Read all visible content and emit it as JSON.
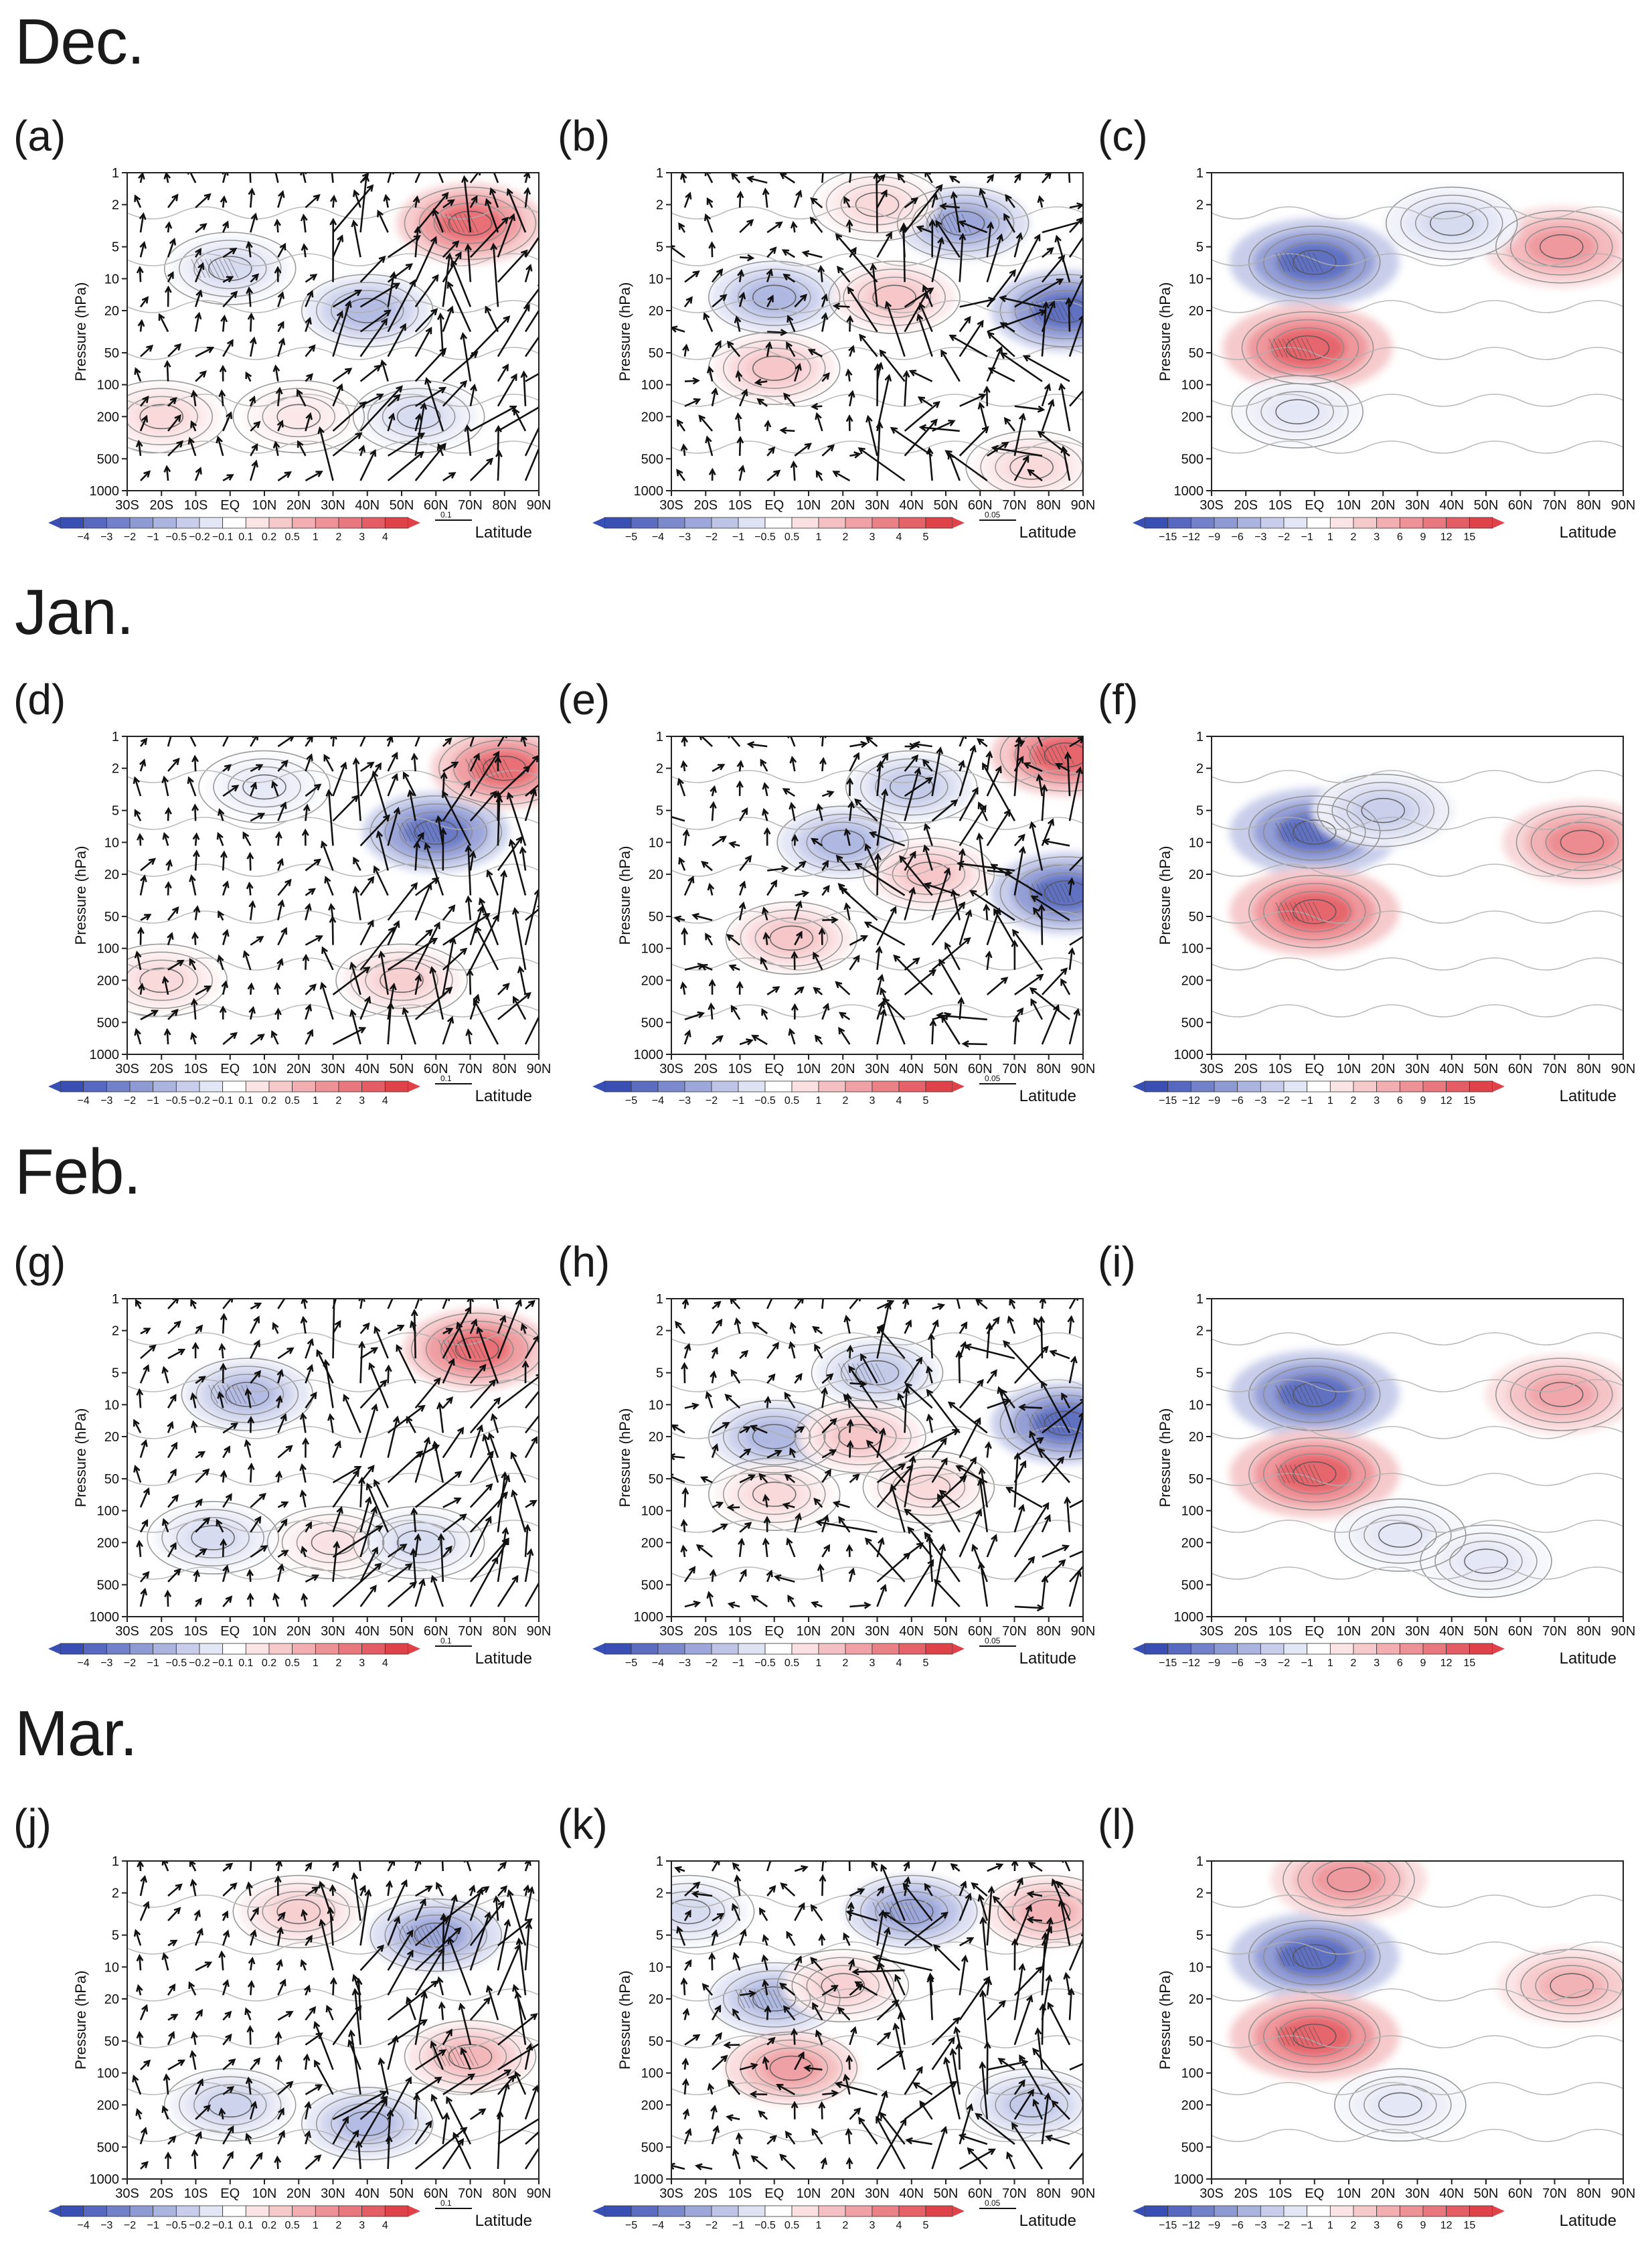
{
  "months": [
    "Dec.",
    "Jan.",
    "Feb.",
    "Mar."
  ],
  "panels": {
    "labels": [
      "(a)",
      "(b)",
      "(c)",
      "(d)",
      "(e)",
      "(f)",
      "(g)",
      "(h)",
      "(i)",
      "(j)",
      "(k)",
      "(l)"
    ],
    "ylabel": "Pressure (hPa)",
    "xlabel": "Latitude"
  },
  "axes": {
    "pressure_ticks": [
      "1",
      "2",
      "5",
      "10",
      "20",
      "50",
      "100",
      "200",
      "500",
      "1000"
    ],
    "latitude_ticks": [
      "30S",
      "20S",
      "10S",
      "EQ",
      "10N",
      "20N",
      "30N",
      "40N",
      "50N",
      "60N",
      "70N",
      "80N",
      "90N"
    ]
  },
  "colorbars": {
    "col1": [
      "−4",
      "−3",
      "−2",
      "−1",
      "−0.5",
      "−0.2",
      "−0.1",
      "0.1",
      "0.2",
      "0.5",
      "1",
      "2",
      "3",
      "4"
    ],
    "col2": [
      "−5",
      "−4",
      "−3",
      "−2",
      "−1",
      "−0.5",
      "0.5",
      "1",
      "2",
      "3",
      "4",
      "5"
    ],
    "col3": [
      "−15",
      "−12",
      "−9",
      "−6",
      "−3",
      "−2",
      "−1",
      "1",
      "2",
      "3",
      "6",
      "9",
      "12",
      "15"
    ]
  },
  "vector_refs": {
    "col1": "0.1",
    "col2": "0.05",
    "col3": ""
  },
  "colors": {
    "red": "#e0424a",
    "blue": "#3a4fb4",
    "contour": "#8a8a8a"
  },
  "chart_data": {
    "type": "heatmap",
    "description_columns": [
      "anomaly with wave-flux vectors",
      "anomaly with wave-flux vectors",
      "anomaly contours"
    ],
    "x": [
      "30S",
      "20S",
      "10S",
      "EQ",
      "10N",
      "20N",
      "30N",
      "40N",
      "50N",
      "60N",
      "70N",
      "80N",
      "90N"
    ],
    "y_pressure_hPa": [
      1,
      2,
      5,
      10,
      20,
      50,
      100,
      200,
      500,
      1000
    ],
    "ylim": [
      1000,
      1
    ],
    "xlim": [
      "30S",
      "90N"
    ],
    "series": [
      {
        "name": "(a) Dec.",
        "levels": [
          -4,
          -3,
          -2,
          -1,
          -0.5,
          -0.2,
          -0.1,
          0.1,
          0.2,
          0.5,
          1,
          2,
          3,
          4
        ],
        "vector_ref": 0.1
      },
      {
        "name": "(b) Dec.",
        "levels": [
          -5,
          -4,
          -3,
          -2,
          -1,
          -0.5,
          0.5,
          1,
          2,
          3,
          4,
          5
        ],
        "vector_ref": 0.05
      },
      {
        "name": "(c) Dec.",
        "levels": [
          -15,
          -12,
          -9,
          -6,
          -3,
          -2,
          -1,
          1,
          2,
          3,
          6,
          9,
          12,
          15
        ]
      },
      {
        "name": "(d) Jan.",
        "levels": [
          -4,
          -3,
          -2,
          -1,
          -0.5,
          -0.2,
          -0.1,
          0.1,
          0.2,
          0.5,
          1,
          2,
          3,
          4
        ],
        "vector_ref": 0.1
      },
      {
        "name": "(e) Jan.",
        "levels": [
          -5,
          -4,
          -3,
          -2,
          -1,
          -0.5,
          0.5,
          1,
          2,
          3,
          4,
          5
        ],
        "vector_ref": 0.05
      },
      {
        "name": "(f) Jan.",
        "levels": [
          -15,
          -12,
          -9,
          -6,
          -3,
          -2,
          -1,
          1,
          2,
          3,
          6,
          9,
          12,
          15
        ]
      },
      {
        "name": "(g) Feb.",
        "levels": [
          -4,
          -3,
          -2,
          -1,
          -0.5,
          -0.2,
          -0.1,
          0.1,
          0.2,
          0.5,
          1,
          2,
          3,
          4
        ],
        "vector_ref": 0.1
      },
      {
        "name": "(h) Feb.",
        "levels": [
          -5,
          -4,
          -3,
          -2,
          -1,
          -0.5,
          0.5,
          1,
          2,
          3,
          4,
          5
        ],
        "vector_ref": 0.05
      },
      {
        "name": "(i) Feb.",
        "levels": [
          -15,
          -12,
          -9,
          -6,
          -3,
          -2,
          -1,
          1,
          2,
          3,
          6,
          9,
          12,
          15
        ]
      },
      {
        "name": "(j) Mar.",
        "levels": [
          -4,
          -3,
          -2,
          -1,
          -0.5,
          -0.2,
          -0.1,
          0.1,
          0.2,
          0.5,
          1,
          2,
          3,
          4
        ],
        "vector_ref": 0.1
      },
      {
        "name": "(k) Mar.",
        "levels": [
          -5,
          -4,
          -3,
          -2,
          -1,
          -0.5,
          0.5,
          1,
          2,
          3,
          4,
          5
        ],
        "vector_ref": 0.05
      },
      {
        "name": "(l) Mar.",
        "levels": [
          -15,
          -12,
          -9,
          -6,
          -3,
          -2,
          -1,
          1,
          2,
          3,
          6,
          9,
          12,
          15
        ]
      }
    ],
    "blobs": [
      [
        {
          "lat": 70,
          "p": 3,
          "v": 3
        },
        {
          "lat": 0,
          "p": 8,
          "v": -0.8
        },
        {
          "lat": 40,
          "p": 20,
          "v": -1.5
        },
        {
          "lat": 55,
          "p": 200,
          "v": -0.8
        },
        {
          "lat": -20,
          "p": 200,
          "v": 0.8
        },
        {
          "lat": 20,
          "p": 200,
          "v": 0.5
        }
      ],
      [
        {
          "lat": 85,
          "p": 20,
          "v": -4
        },
        {
          "lat": 55,
          "p": 3,
          "v": -2.5
        },
        {
          "lat": 0,
          "p": 15,
          "v": -2
        },
        {
          "lat": 35,
          "p": 15,
          "v": 1.5
        },
        {
          "lat": 0,
          "p": 70,
          "v": 1.5
        },
        {
          "lat": 30,
          "p": 2,
          "v": 1
        },
        {
          "lat": 75,
          "p": 600,
          "v": 1
        }
      ],
      [
        {
          "lat": 0,
          "p": 7,
          "v": -12
        },
        {
          "lat": -2,
          "p": 45,
          "v": 12
        },
        {
          "lat": 72,
          "p": 5,
          "v": 8
        },
        {
          "lat": -5,
          "p": 180,
          "v": -2
        },
        {
          "lat": 40,
          "p": 3,
          "v": -3
        }
      ],
      [
        {
          "lat": 60,
          "p": 8,
          "v": -3
        },
        {
          "lat": 80,
          "p": 2,
          "v": 3
        },
        {
          "lat": 10,
          "p": 3,
          "v": -0.5
        },
        {
          "lat": 50,
          "p": 200,
          "v": 1
        },
        {
          "lat": -20,
          "p": 200,
          "v": 0.8
        }
      ],
      [
        {
          "lat": 85,
          "p": 30,
          "v": -4
        },
        {
          "lat": 85,
          "p": 1.5,
          "v": 4
        },
        {
          "lat": 20,
          "p": 10,
          "v": -2
        },
        {
          "lat": 45,
          "p": 20,
          "v": 1.5
        },
        {
          "lat": 5,
          "p": 80,
          "v": 1.5
        },
        {
          "lat": 40,
          "p": 3,
          "v": -1.5
        }
      ],
      [
        {
          "lat": 0,
          "p": 8,
          "v": -12
        },
        {
          "lat": 0,
          "p": 45,
          "v": 12
        },
        {
          "lat": 78,
          "p": 10,
          "v": 9
        },
        {
          "lat": 20,
          "p": 5,
          "v": -4
        }
      ],
      [
        {
          "lat": 72,
          "p": 3,
          "v": 3
        },
        {
          "lat": 5,
          "p": 8,
          "v": -1.5
        },
        {
          "lat": -5,
          "p": 180,
          "v": -0.8
        },
        {
          "lat": 30,
          "p": 200,
          "v": 0.6
        },
        {
          "lat": 55,
          "p": 200,
          "v": -0.8
        }
      ],
      [
        {
          "lat": 85,
          "p": 15,
          "v": -4
        },
        {
          "lat": 30,
          "p": 5,
          "v": -1.5
        },
        {
          "lat": 0,
          "p": 20,
          "v": -2
        },
        {
          "lat": 25,
          "p": 20,
          "v": 1.5
        },
        {
          "lat": 0,
          "p": 70,
          "v": 1
        },
        {
          "lat": 45,
          "p": 60,
          "v": 1
        }
      ],
      [
        {
          "lat": 0,
          "p": 8,
          "v": -12
        },
        {
          "lat": 0,
          "p": 45,
          "v": 12
        },
        {
          "lat": 72,
          "p": 8,
          "v": 7
        },
        {
          "lat": 25,
          "p": 170,
          "v": -2
        },
        {
          "lat": 50,
          "p": 300,
          "v": -2
        }
      ],
      [
        {
          "lat": 60,
          "p": 5,
          "v": -2
        },
        {
          "lat": 70,
          "p": 70,
          "v": 1.5
        },
        {
          "lat": 20,
          "p": 3,
          "v": 1
        },
        {
          "lat": 40,
          "p": 300,
          "v": -1.5
        },
        {
          "lat": 0,
          "p": 200,
          "v": -1
        }
      ],
      [
        {
          "lat": 40,
          "p": 3,
          "v": -2.5
        },
        {
          "lat": 0,
          "p": 20,
          "v": -2
        },
        {
          "lat": -25,
          "p": 3,
          "v": -1
        },
        {
          "lat": 80,
          "p": 3,
          "v": 2
        },
        {
          "lat": 5,
          "p": 90,
          "v": 2.5
        },
        {
          "lat": 20,
          "p": 15,
          "v": 1.2
        },
        {
          "lat": 75,
          "p": 200,
          "v": -1.5
        }
      ],
      [
        {
          "lat": 0,
          "p": 8,
          "v": -12
        },
        {
          "lat": 0,
          "p": 45,
          "v": 12
        },
        {
          "lat": 75,
          "p": 15,
          "v": 6
        },
        {
          "lat": 10,
          "p": 1.5,
          "v": 8
        },
        {
          "lat": 25,
          "p": 200,
          "v": -2
        }
      ]
    ]
  }
}
